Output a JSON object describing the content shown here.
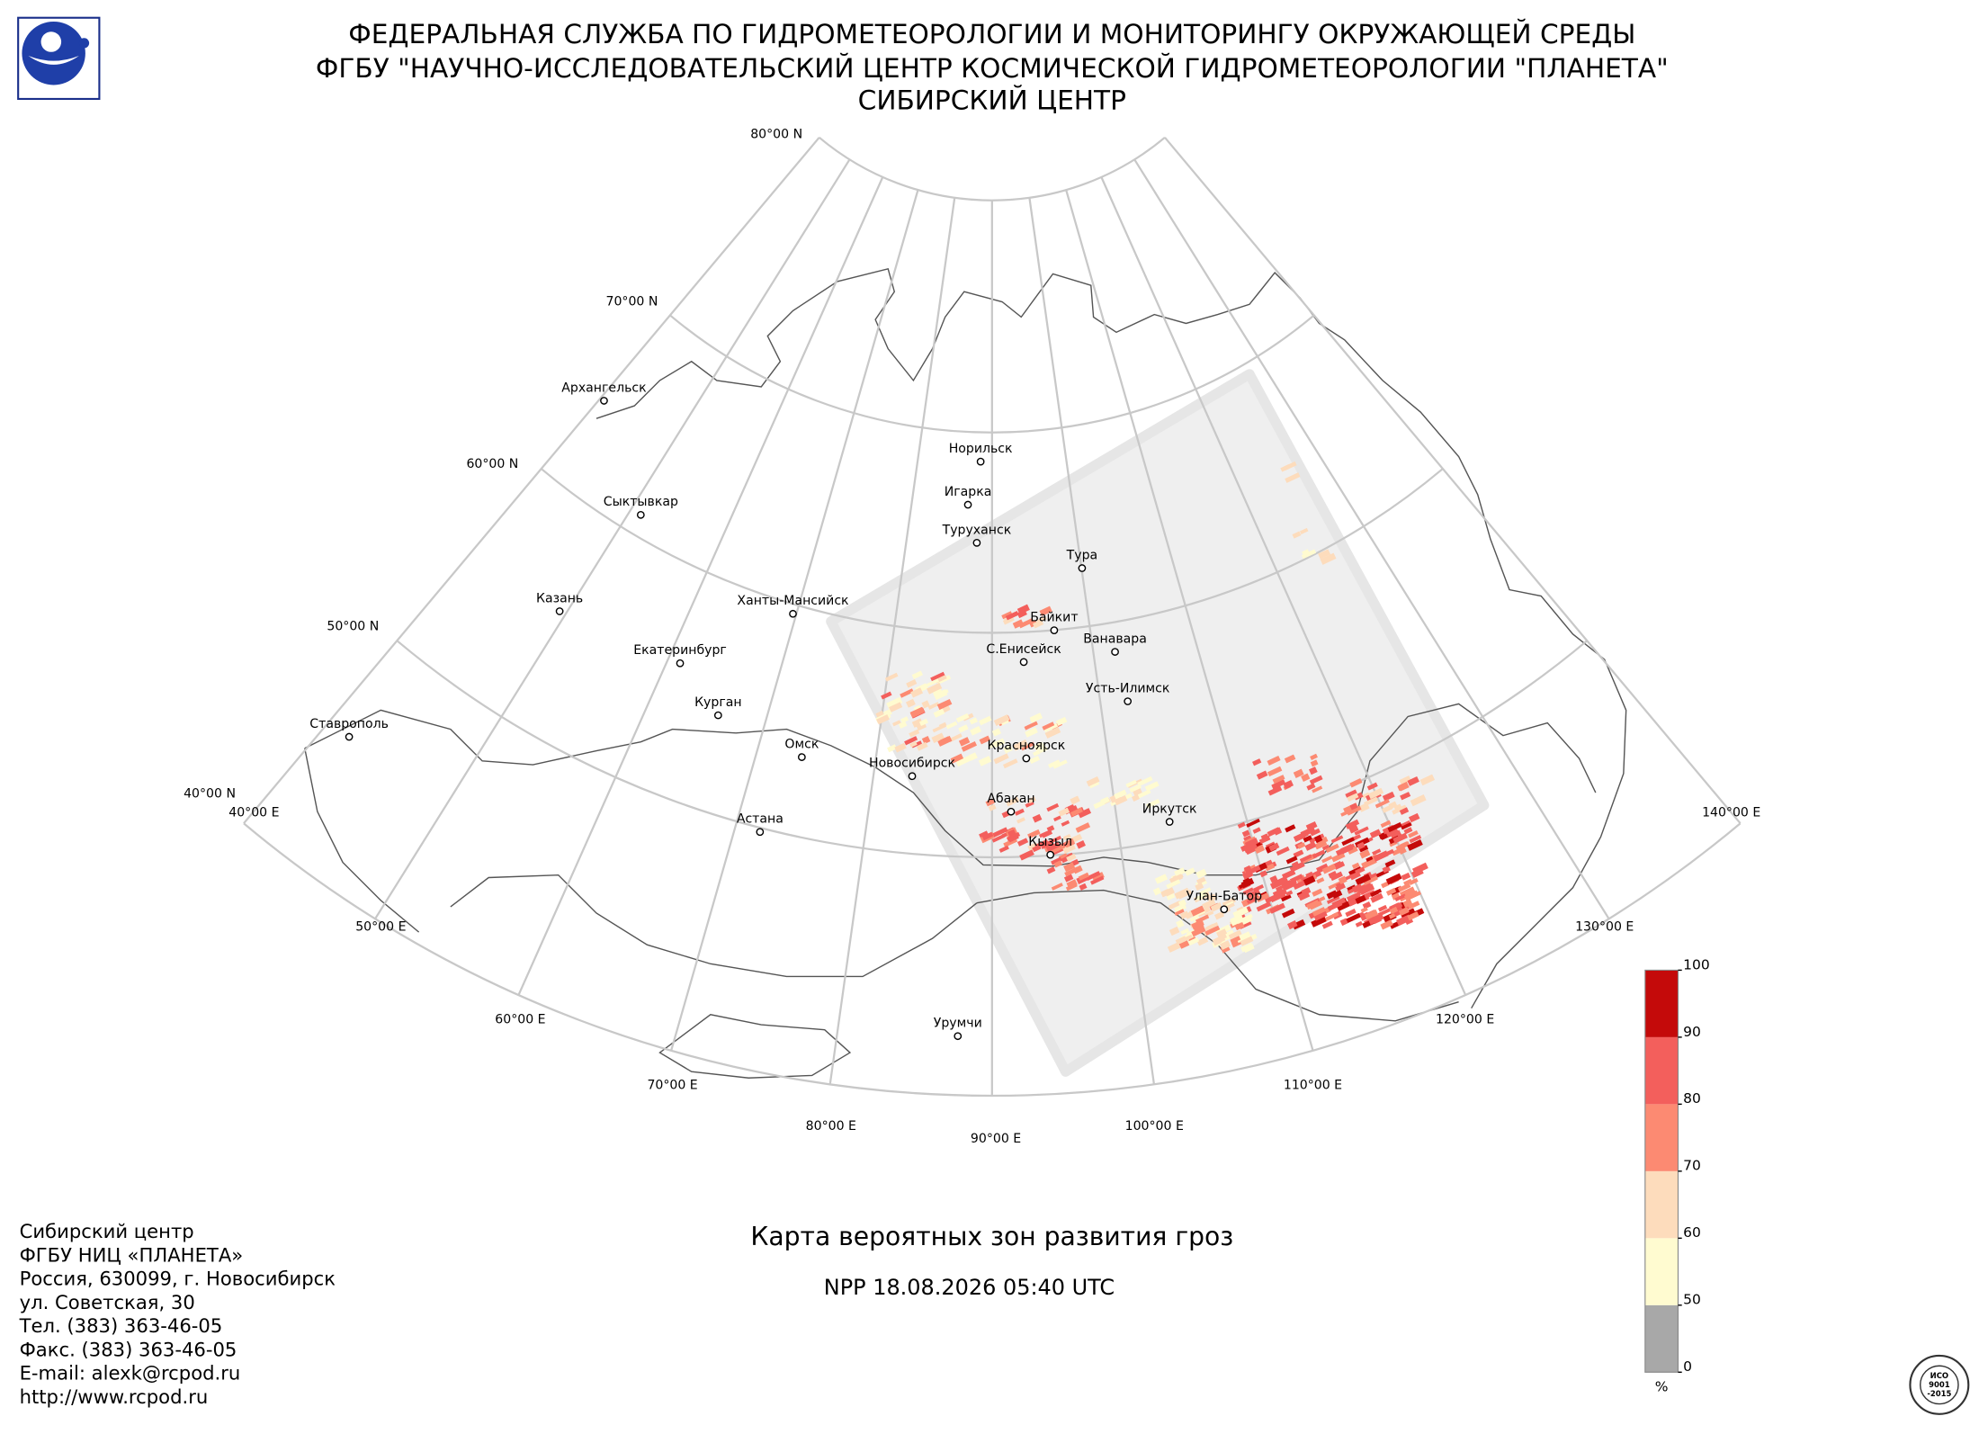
{
  "header": {
    "lines": [
      "ФЕДЕРАЛЬНАЯ СЛУЖБА ПО ГИДРОМЕТЕОРОЛОГИИ И МОНИТОРИНГУ ОКРУЖАЮЩЕЙ СРЕДЫ",
      "ФГБУ \"НАУЧНО-ИССЛЕДОВАТЕЛЬСКИЙ ЦЕНТР КОСМИЧЕСКОЙ ГИДРОМЕТЕОРОЛОГИИ \"ПЛАНЕТА\"",
      "СИБИРСКИЙ ЦЕНТР"
    ]
  },
  "map": {
    "lat_labels": [
      "80°00 N",
      "70°00 N",
      "60°00 N",
      "50°00 N",
      "40°00 N"
    ],
    "lon_labels": [
      "40°00 E",
      "50°00 E",
      "60°00 E",
      "70°00 E",
      "80°00 E",
      "90°00 E",
      "100°00 E",
      "110°00 E",
      "120°00 E",
      "130°00 E",
      "140°00 E"
    ],
    "cities": [
      "Архангельск",
      "Сыктывкар",
      "Казань",
      "Екатеринбург",
      "Курган",
      "Ставрополь",
      "Ханты-Мансийск",
      "Омск",
      "Новосибирск",
      "Астана",
      "Норильск",
      "Игарка",
      "Туруханск",
      "Тура",
      "Байкит",
      "Ванавара",
      "С.Енисейск",
      "Усть-Илимск",
      "Красноярск",
      "Абакан",
      "Иркутск",
      "Кызыл",
      "Улан-Батор",
      "Урумчи"
    ]
  },
  "colorbar": {
    "ticks": [
      0,
      50,
      60,
      70,
      80,
      90,
      100
    ],
    "colors": [
      "#a8a8a8",
      "#fffbd0",
      "#fddcbc",
      "#fc8a72",
      "#f35f5c",
      "#c40a0a"
    ],
    "unit": "%"
  },
  "title": "Карта вероятных зон развития гроз",
  "subtitle": "NPP 18.08.2026  05:40 UTC",
  "contacts": [
    "Сибирский центр",
    "ФГБУ НИЦ «ПЛАНЕТА»",
    "Россия, 630099, г. Новосибирск",
    "ул. Советская, 30",
    "Тел. (383) 363-46-05",
    "Факс. (383) 363-46-05",
    "E-mail: alexk@rcpod.ru",
    "http://www.rcpod.ru"
  ],
  "iso_logo": [
    "ИСО",
    "9001",
    "-2015"
  ]
}
